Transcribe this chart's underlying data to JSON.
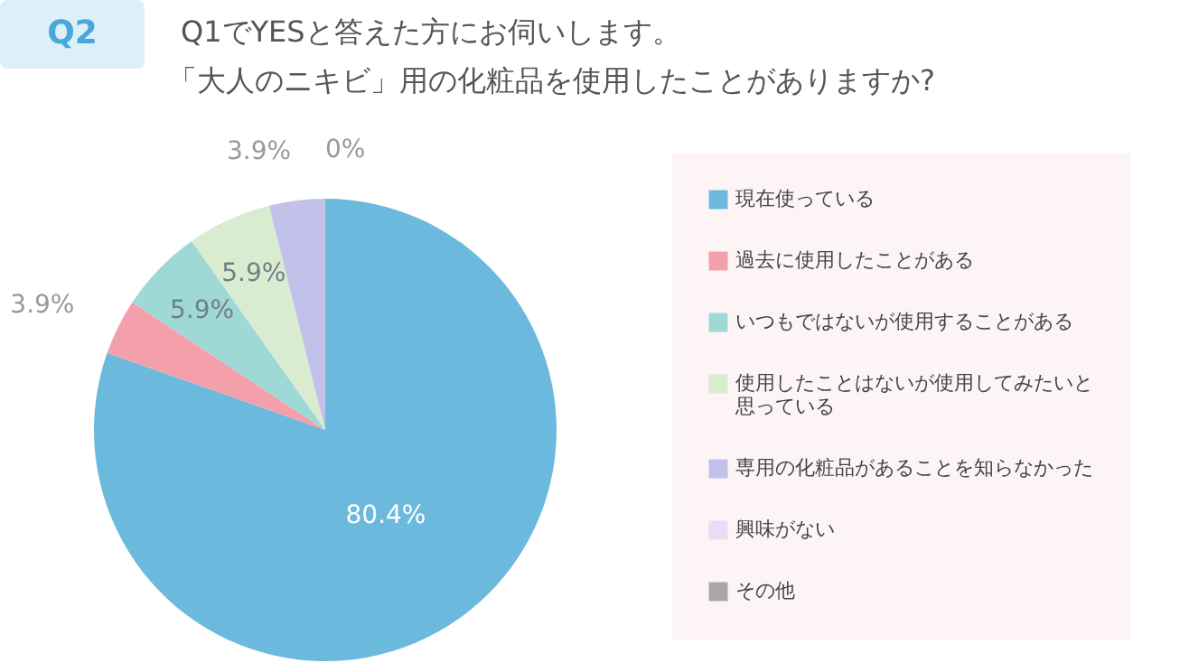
{
  "chart_data": {
    "type": "pie",
    "title": "Q1でYESと答えた方にお伺いします。",
    "subtitle": "「大人のニキビ」用の化粧品を使用したことがありますか?",
    "annotations": [
      "Q2"
    ],
    "categories": [
      "現在使っている",
      "過去に使用したことがある",
      "いつもではないが使用することがある",
      "使用したことはないが使用してみたいと思っている",
      "専用の化粧品があることを知らなかった",
      "興味がない",
      "その他"
    ],
    "values": [
      80.4,
      3.9,
      5.9,
      5.9,
      3.9,
      0,
      0
    ],
    "value_labels": [
      "80.4%",
      "3.9%",
      "5.9%",
      "5.9%",
      "3.9%",
      "0%",
      null
    ],
    "colors": [
      "#6bb9dc",
      "#f4a0aa",
      "#9fd9d6",
      "#d9ecd0",
      "#c2c1ea",
      "#e9dcf6",
      "#a8a6a6"
    ],
    "legend": "right"
  }
}
